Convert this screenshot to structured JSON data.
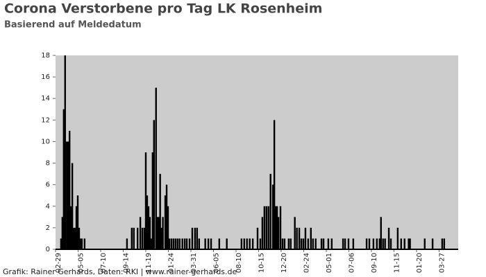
{
  "chart_data": {
    "type": "bar",
    "title": "Corona Verstorbene pro Tag LK Rosenheim",
    "subtitle": "Basierend auf Meldedatum",
    "footer": "Grafik: Rainer Gerhards, Daten: RKI | www.rainer-gerhards.de",
    "color": "#000000",
    "background": "#cccccc",
    "xlim": [
      0,
      1178
    ],
    "ylim": [
      0,
      18
    ],
    "yticks": [
      0,
      2,
      4,
      6,
      8,
      10,
      12,
      14,
      16,
      18
    ],
    "xticks": [
      {
        "value": 0,
        "label": "02-29"
      },
      {
        "value": 66,
        "label": "05-05"
      },
      {
        "value": 132,
        "label": "07-10"
      },
      {
        "value": 198,
        "label": "09-14"
      },
      {
        "value": 264,
        "label": "11-19"
      },
      {
        "value": 330,
        "label": "01-24"
      },
      {
        "value": 396,
        "label": "03-31"
      },
      {
        "value": 462,
        "label": "06-05"
      },
      {
        "value": 528,
        "label": "08-10"
      },
      {
        "value": 594,
        "label": "10-15"
      },
      {
        "value": 660,
        "label": "12-20"
      },
      {
        "value": 726,
        "label": "02-24"
      },
      {
        "value": 792,
        "label": "05-01"
      },
      {
        "value": 858,
        "label": "07-06"
      },
      {
        "value": 924,
        "label": "09-10"
      },
      {
        "value": 990,
        "label": "11-15"
      },
      {
        "value": 1056,
        "label": "01-20"
      },
      {
        "value": 1122,
        "label": "03-27"
      }
    ],
    "x": [
      16,
      20,
      24,
      28,
      33,
      37,
      41,
      45,
      49,
      53,
      57,
      61,
      65,
      69,
      73,
      77,
      85,
      209,
      223,
      229,
      240,
      248,
      254,
      260,
      264,
      268,
      272,
      276,
      280,
      284,
      288,
      294,
      298,
      302,
      306,
      310,
      314,
      321,
      325,
      329,
      333,
      339,
      345,
      351,
      357,
      363,
      371,
      378,
      384,
      392,
      400,
      408,
      414,
      420,
      438,
      447,
      455,
      479,
      501,
      544,
      552,
      560,
      568,
      577,
      591,
      599,
      605,
      611,
      617,
      623,
      629,
      636,
      640,
      644,
      648,
      652,
      658,
      664,
      670,
      682,
      688,
      700,
      706,
      713,
      719,
      725,
      731,
      739,
      747,
      753,
      761,
      778,
      784,
      798,
      808,
      841,
      847,
      857,
      871,
      910,
      918,
      930,
      940,
      948,
      952,
      958,
      964,
      975,
      981,
      1001,
      1011,
      1021,
      1033,
      1037,
      1080,
      1103,
      1131,
      1137
    ],
    "values": [
      1,
      3,
      13,
      18,
      10,
      10,
      11,
      4,
      8,
      2,
      2,
      4,
      5,
      2,
      1,
      1,
      1,
      1,
      2,
      2,
      2,
      3,
      2,
      2,
      9,
      5,
      4,
      3,
      1,
      9,
      12,
      15,
      3,
      3,
      7,
      2,
      3,
      5,
      6,
      4,
      1,
      1,
      1,
      1,
      1,
      1,
      1,
      1,
      1,
      1,
      2,
      2,
      2,
      1,
      1,
      1,
      1,
      1,
      1,
      1,
      1,
      1,
      1,
      1,
      2,
      1,
      3,
      4,
      4,
      4,
      7,
      6,
      12,
      4,
      4,
      3,
      4,
      1,
      1,
      1,
      1,
      3,
      2,
      2,
      1,
      1,
      2,
      1,
      2,
      1,
      1,
      1,
      1,
      1,
      1,
      1,
      1,
      1,
      1,
      1,
      1,
      1,
      1,
      1,
      3,
      1,
      1,
      2,
      1,
      2,
      1,
      1,
      1,
      1,
      1,
      1,
      1,
      1
    ]
  }
}
